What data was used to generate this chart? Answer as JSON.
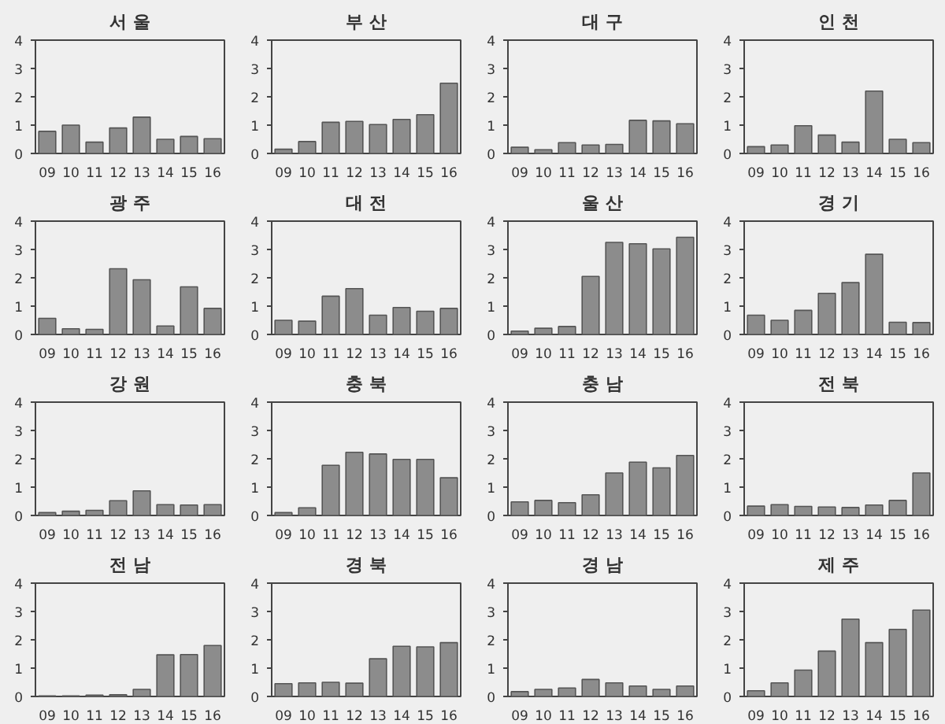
{
  "chart_data": [
    {
      "type": "bar",
      "title": "서 울",
      "categories": [
        "09",
        "10",
        "11",
        "12",
        "13",
        "14",
        "15",
        "16"
      ],
      "values": [
        0.78,
        1.0,
        0.4,
        0.9,
        1.28,
        0.5,
        0.6,
        0.52
      ],
      "color": "#8c8c8c",
      "ylim": [
        0,
        4
      ],
      "yticks": [
        0,
        1,
        2,
        3,
        4
      ],
      "grid": false
    },
    {
      "type": "bar",
      "title": "부 산",
      "categories": [
        "09",
        "10",
        "11",
        "12",
        "13",
        "14",
        "15",
        "16"
      ],
      "values": [
        0.15,
        0.42,
        1.1,
        1.13,
        1.02,
        1.2,
        1.37,
        2.48
      ],
      "color": "#8c8c8c",
      "ylim": [
        0,
        4
      ],
      "yticks": [
        0,
        1,
        2,
        3,
        4
      ],
      "grid": false
    },
    {
      "type": "bar",
      "title": "대 구",
      "categories": [
        "09",
        "10",
        "11",
        "12",
        "13",
        "14",
        "15",
        "16"
      ],
      "values": [
        0.22,
        0.13,
        0.38,
        0.3,
        0.32,
        1.17,
        1.15,
        1.05
      ],
      "color": "#8c8c8c",
      "ylim": [
        0,
        4
      ],
      "yticks": [
        0,
        1,
        2,
        3,
        4
      ],
      "grid": false
    },
    {
      "type": "bar",
      "title": "인 천",
      "categories": [
        "09",
        "10",
        "11",
        "12",
        "13",
        "14",
        "15",
        "16"
      ],
      "values": [
        0.24,
        0.3,
        0.98,
        0.65,
        0.4,
        2.2,
        0.5,
        0.38
      ],
      "color": "#8c8c8c",
      "ylim": [
        0,
        4
      ],
      "yticks": [
        0,
        1,
        2,
        3,
        4
      ],
      "grid": false
    },
    {
      "type": "bar",
      "title": "광 주",
      "categories": [
        "09",
        "10",
        "11",
        "12",
        "13",
        "14",
        "15",
        "16"
      ],
      "values": [
        0.57,
        0.2,
        0.18,
        2.32,
        1.93,
        0.3,
        1.68,
        0.92
      ],
      "color": "#8c8c8c",
      "ylim": [
        0,
        4
      ],
      "yticks": [
        0,
        1,
        2,
        3,
        4
      ],
      "grid": false
    },
    {
      "type": "bar",
      "title": "대 전",
      "categories": [
        "09",
        "10",
        "11",
        "12",
        "13",
        "14",
        "15",
        "16"
      ],
      "values": [
        0.5,
        0.47,
        1.35,
        1.62,
        0.68,
        0.95,
        0.82,
        0.92
      ],
      "color": "#8c8c8c",
      "ylim": [
        0,
        4
      ],
      "yticks": [
        0,
        1,
        2,
        3,
        4
      ],
      "grid": false
    },
    {
      "type": "bar",
      "title": "울 산",
      "categories": [
        "09",
        "10",
        "11",
        "12",
        "13",
        "14",
        "15",
        "16"
      ],
      "values": [
        0.12,
        0.22,
        0.28,
        2.05,
        3.25,
        3.2,
        3.02,
        3.43
      ],
      "color": "#8c8c8c",
      "ylim": [
        0,
        4
      ],
      "yticks": [
        0,
        1,
        2,
        3,
        4
      ],
      "grid": false
    },
    {
      "type": "bar",
      "title": "경 기",
      "categories": [
        "09",
        "10",
        "11",
        "12",
        "13",
        "14",
        "15",
        "16"
      ],
      "values": [
        0.68,
        0.5,
        0.85,
        1.45,
        1.83,
        2.83,
        0.43,
        0.42
      ],
      "color": "#8c8c8c",
      "ylim": [
        0,
        4
      ],
      "yticks": [
        0,
        1,
        2,
        3,
        4
      ],
      "grid": false
    },
    {
      "type": "bar",
      "title": "강 원",
      "categories": [
        "09",
        "10",
        "11",
        "12",
        "13",
        "14",
        "15",
        "16"
      ],
      "values": [
        0.1,
        0.15,
        0.18,
        0.52,
        0.87,
        0.38,
        0.37,
        0.38
      ],
      "color": "#8c8c8c",
      "ylim": [
        0,
        4
      ],
      "yticks": [
        0,
        1,
        2,
        3,
        4
      ],
      "grid": false
    },
    {
      "type": "bar",
      "title": "충 북",
      "categories": [
        "09",
        "10",
        "11",
        "12",
        "13",
        "14",
        "15",
        "16"
      ],
      "values": [
        0.1,
        0.27,
        1.77,
        2.23,
        2.17,
        1.98,
        1.98,
        1.33
      ],
      "color": "#8c8c8c",
      "ylim": [
        0,
        4
      ],
      "yticks": [
        0,
        1,
        2,
        3,
        4
      ],
      "grid": false
    },
    {
      "type": "bar",
      "title": "충 남",
      "categories": [
        "09",
        "10",
        "11",
        "12",
        "13",
        "14",
        "15",
        "16"
      ],
      "values": [
        0.48,
        0.53,
        0.45,
        0.73,
        1.5,
        1.88,
        1.68,
        2.12
      ],
      "color": "#8c8c8c",
      "ylim": [
        0,
        4
      ],
      "yticks": [
        0,
        1,
        2,
        3,
        4
      ],
      "grid": false
    },
    {
      "type": "bar",
      "title": "전 북",
      "categories": [
        "09",
        "10",
        "11",
        "12",
        "13",
        "14",
        "15",
        "16"
      ],
      "values": [
        0.33,
        0.38,
        0.32,
        0.3,
        0.28,
        0.37,
        0.53,
        1.5
      ],
      "color": "#8c8c8c",
      "ylim": [
        0,
        4
      ],
      "yticks": [
        0,
        1,
        2,
        3,
        4
      ],
      "grid": false
    },
    {
      "type": "bar",
      "title": "전 남",
      "categories": [
        "09",
        "10",
        "11",
        "12",
        "13",
        "14",
        "15",
        "16"
      ],
      "values": [
        0.02,
        0.02,
        0.05,
        0.06,
        0.25,
        1.47,
        1.48,
        1.8
      ],
      "color": "#8c8c8c",
      "ylim": [
        0,
        4
      ],
      "yticks": [
        0,
        1,
        2,
        3,
        4
      ],
      "grid": false
    },
    {
      "type": "bar",
      "title": "경 북",
      "categories": [
        "09",
        "10",
        "11",
        "12",
        "13",
        "14",
        "15",
        "16"
      ],
      "values": [
        0.45,
        0.48,
        0.5,
        0.47,
        1.33,
        1.77,
        1.75,
        1.9
      ],
      "color": "#8c8c8c",
      "ylim": [
        0,
        4
      ],
      "yticks": [
        0,
        1,
        2,
        3,
        4
      ],
      "grid": false
    },
    {
      "type": "bar",
      "title": "경 남",
      "categories": [
        "09",
        "10",
        "11",
        "12",
        "13",
        "14",
        "15",
        "16"
      ],
      "values": [
        0.17,
        0.25,
        0.3,
        0.6,
        0.48,
        0.37,
        0.25,
        0.37
      ],
      "color": "#8c8c8c",
      "ylim": [
        0,
        4
      ],
      "yticks": [
        0,
        1,
        2,
        3,
        4
      ],
      "grid": false
    },
    {
      "type": "bar",
      "title": "제 주",
      "categories": [
        "09",
        "10",
        "11",
        "12",
        "13",
        "14",
        "15",
        "16"
      ],
      "values": [
        0.2,
        0.48,
        0.93,
        1.6,
        2.73,
        1.9,
        2.37,
        3.05
      ],
      "color": "#8c8c8c",
      "ylim": [
        0,
        4
      ],
      "yticks": [
        0,
        1,
        2,
        3,
        4
      ],
      "grid": false
    }
  ]
}
